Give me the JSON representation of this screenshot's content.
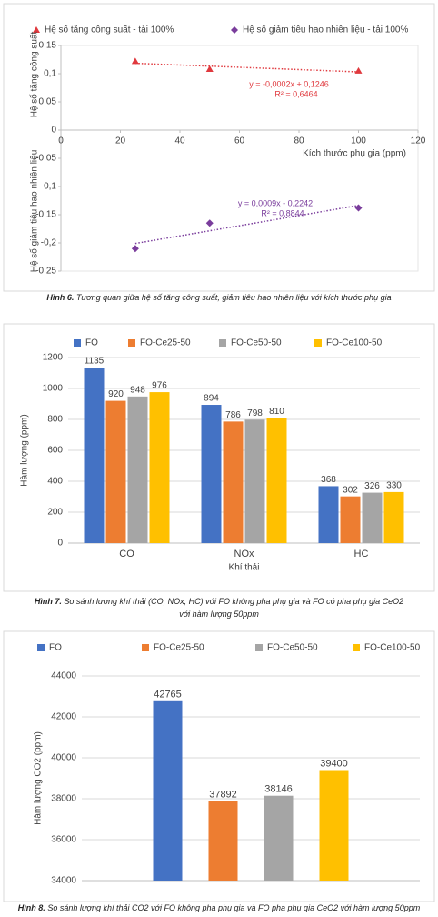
{
  "chart_data": [
    {
      "type": "scatter",
      "figure": "Hình 6.",
      "caption": [
        "Tương quan giữa hệ số tăng công suất, giảm tiêu hao nhiên liệu với kích thước phụ gia"
      ],
      "x_label": "Kích thước phụ gia (ppm)",
      "y_labels": [
        "Hệ số tăng công suất",
        "Hệ số giảm tiêu hao nhiên liệu"
      ],
      "series": [
        {
          "name": "Hệ số tăng công suất - tải 100%",
          "color": "#e0393e",
          "marker": "triangle",
          "x": [
            25,
            50,
            100
          ],
          "values": [
            0.122,
            0.108,
            0.105
          ],
          "trendline": {
            "equation": "y = -0,0002x + 0,1246",
            "r_squared": "R² = 0,6464"
          }
        },
        {
          "name": "Hệ số giảm tiêu hao nhiên liệu - tải 100%",
          "color": "#7a3d9c",
          "marker": "diamond",
          "x": [
            25,
            50,
            100
          ],
          "values": [
            -0.21,
            -0.165,
            -0.138
          ],
          "trendline": {
            "equation": "y = 0,0009x - 0,2242",
            "r_squared": "R² = 0,8844"
          }
        }
      ],
      "xlim": [
        0,
        120
      ],
      "xticks": [
        0,
        20,
        40,
        60,
        80,
        100,
        120
      ],
      "ylim": [
        -0.25,
        0.15
      ],
      "yticks": [
        {
          "value": 0.15,
          "label": "0,15"
        },
        {
          "value": 0.1,
          "label": "0,1"
        },
        {
          "value": 0.05,
          "label": "0,05"
        },
        0,
        {
          "value": -0.05,
          "label": "-0,05"
        },
        {
          "value": -0.1,
          "label": "-0,1"
        },
        {
          "value": -0.15,
          "label": "-0,15"
        },
        {
          "value": -0.2,
          "label": "-0,2"
        },
        {
          "value": -0.25,
          "label": "-0,25"
        }
      ],
      "grid": false,
      "legend": "top"
    },
    {
      "type": "bar",
      "figure": "Hình 7.",
      "caption": [
        "So sánh lượng khí thải (CO, NOx, HC) với FO không pha phụ gia và FO có pha phụ gia CeO2",
        "với hàm lượng 50ppm"
      ],
      "x_label": "Khí thải",
      "y_label": "Hàm lượng (ppm)",
      "categories": [
        "CO",
        "NOx",
        "HC"
      ],
      "series": [
        {
          "name": "FO",
          "color": "#4472c4",
          "values": [
            1135,
            894,
            368
          ]
        },
        {
          "name": "FO-Ce25-50",
          "color": "#ed7d31",
          "values": [
            920,
            786,
            302
          ]
        },
        {
          "name": "FO-Ce50-50",
          "color": "#a5a5a5",
          "values": [
            948,
            798,
            326
          ]
        },
        {
          "name": "FO-Ce100-50",
          "color": "#ffc000",
          "values": [
            976,
            810,
            330
          ]
        }
      ],
      "ylim": [
        0,
        1200
      ],
      "yticks": [
        0,
        200,
        400,
        600,
        800,
        1000,
        1200
      ],
      "grid": true,
      "legend": "top"
    },
    {
      "type": "bar",
      "figure": "Hình 8.",
      "caption": [
        "So sánh lượng khí thải CO2 với FO không pha phụ gia và FO pha phụ gia CeO2 với hàm lượng 50ppm"
      ],
      "y_label": "Hàm lượng CO2 (ppm)",
      "categories": [
        null
      ],
      "series": [
        {
          "name": "FO",
          "color": "#4472c4",
          "values": [
            42765
          ]
        },
        {
          "name": "FO-Ce25-50",
          "color": "#ed7d31",
          "values": [
            37892
          ]
        },
        {
          "name": "FO-Ce50-50",
          "color": "#a5a5a5",
          "values": [
            38146
          ]
        },
        {
          "name": "FO-Ce100-50",
          "color": "#ffc000",
          "values": [
            39400
          ]
        }
      ],
      "ylim": [
        34000,
        44000
      ],
      "yticks": [
        34000,
        36000,
        38000,
        40000,
        42000,
        44000
      ],
      "grid": true,
      "legend": "top"
    }
  ]
}
